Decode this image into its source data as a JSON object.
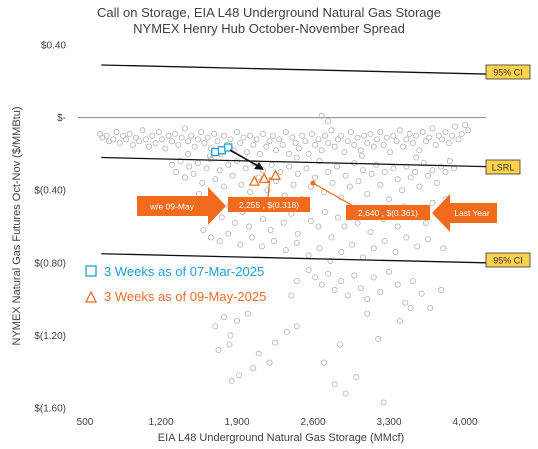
{
  "chart_data": {
    "type": "scatter",
    "title": "Call on Storage, EIA L48 Underground Natural Gas Storage",
    "subtitle": "NYMEX Henry Hub October-November Spread",
    "xlabel": "EIA L48 Underground Natural Gas Storage (MMcf)",
    "ylabel": "NYMEX Natural Gas Futures Oct-Nov ($/MMBtu)",
    "xlim": [
      500,
      4200
    ],
    "ylim": [
      -1.6,
      0.4
    ],
    "x_ticks": [
      500,
      1200,
      1900,
      2600,
      3300,
      4000
    ],
    "x_tick_labels": [
      "500",
      "1,200",
      "1,900",
      "2,600",
      "3,300",
      "4,000"
    ],
    "y_ticks": [
      0.4,
      0.0,
      -0.4,
      -0.8,
      -1.2,
      -1.6
    ],
    "y_tick_labels": [
      "$0.40",
      "$-",
      "$(0.40)",
      "$(0.80)",
      "$(1.20)",
      "$(1.60)"
    ],
    "lines": [
      {
        "label": "95% CI",
        "x": [
          650,
          4200
        ],
        "y": [
          0.29,
          0.24
        ]
      },
      {
        "label": "LSRL",
        "x": [
          650,
          4200
        ],
        "y": [
          -0.22,
          -0.27
        ]
      },
      {
        "label": "95% CI",
        "x": [
          650,
          4200
        ],
        "y": [
          -0.75,
          -0.8
        ]
      }
    ],
    "series": [
      {
        "name": "3 Weeks as of 07-Mar-2025",
        "color": "#1ea0dc",
        "marker": "square",
        "x": [
          1700,
          1760,
          1820
        ],
        "y": [
          -0.19,
          -0.18,
          -0.165
        ]
      },
      {
        "name": "3 Weeks as of 09-May-2025",
        "color": "#e8702a",
        "marker": "triangle",
        "x": [
          2060,
          2150,
          2255
        ],
        "y": [
          -0.35,
          -0.335,
          -0.318
        ]
      }
    ],
    "annotations": [
      {
        "text": "w/e 09-May"
      },
      {
        "text": "2,255 ,  $(0.318)"
      },
      {
        "text": "2,640 ,  $(0.361)"
      },
      {
        "text": "Last Year"
      }
    ],
    "history_points": [
      [
        640,
        -0.09
      ],
      [
        660,
        -0.11
      ],
      [
        700,
        -0.1
      ],
      [
        720,
        -0.13
      ],
      [
        760,
        -0.12
      ],
      [
        790,
        -0.08
      ],
      [
        820,
        -0.14
      ],
      [
        850,
        -0.1
      ],
      [
        880,
        -0.12
      ],
      [
        910,
        -0.09
      ],
      [
        940,
        -0.15
      ],
      [
        970,
        -0.11
      ],
      [
        1000,
        -0.13
      ],
      [
        1030,
        -0.07
      ],
      [
        1060,
        -0.12
      ],
      [
        1090,
        -0.16
      ],
      [
        1120,
        -0.1
      ],
      [
        1150,
        -0.14
      ],
      [
        1180,
        -0.08
      ],
      [
        1210,
        -0.12
      ],
      [
        1240,
        -0.17
      ],
      [
        1270,
        -0.1
      ],
      [
        1300,
        -0.13
      ],
      [
        1330,
        -0.09
      ],
      [
        1360,
        -0.15
      ],
      [
        1390,
        -0.11
      ],
      [
        1420,
        -0.06
      ],
      [
        1450,
        -0.13
      ],
      [
        1480,
        -0.1
      ],
      [
        1510,
        -0.16
      ],
      [
        1540,
        -0.12
      ],
      [
        1570,
        -0.08
      ],
      [
        1600,
        -0.14
      ],
      [
        1630,
        -0.11
      ],
      [
        1660,
        -0.17
      ],
      [
        1690,
        -0.09
      ],
      [
        1720,
        -0.13
      ],
      [
        1750,
        -0.2
      ],
      [
        1780,
        -0.1
      ],
      [
        1810,
        -0.15
      ],
      [
        1840,
        -0.12
      ],
      [
        1870,
        -0.18
      ],
      [
        1900,
        -0.08
      ],
      [
        1930,
        -0.14
      ],
      [
        1960,
        -0.11
      ],
      [
        1990,
        -0.19
      ],
      [
        2020,
        -0.1
      ],
      [
        2050,
        -0.15
      ],
      [
        2080,
        -0.12
      ],
      [
        2110,
        -0.2
      ],
      [
        2140,
        -0.09
      ],
      [
        2170,
        -0.16
      ],
      [
        2200,
        -0.13
      ],
      [
        2230,
        -0.1
      ],
      [
        2260,
        -0.18
      ],
      [
        2290,
        -0.12
      ],
      [
        2320,
        -0.15
      ],
      [
        2350,
        -0.08
      ],
      [
        2380,
        -0.2
      ],
      [
        2410,
        -0.11
      ],
      [
        2440,
        -0.14
      ],
      [
        2470,
        -0.17
      ],
      [
        2500,
        -0.1
      ],
      [
        2530,
        -0.13
      ],
      [
        2560,
        -0.2
      ],
      [
        2590,
        -0.09
      ],
      [
        2620,
        -0.15
      ],
      [
        2650,
        -0.12
      ],
      [
        2680,
        -0.18
      ],
      [
        2710,
        -0.1
      ],
      [
        2740,
        -0.14
      ],
      [
        2770,
        -0.07
      ],
      [
        2800,
        -0.16
      ],
      [
        2830,
        -0.12
      ],
      [
        2860,
        -0.1
      ],
      [
        2890,
        -0.19
      ],
      [
        2920,
        -0.13
      ],
      [
        2950,
        -0.08
      ],
      [
        2980,
        -0.15
      ],
      [
        3010,
        -0.11
      ],
      [
        3040,
        -0.18
      ],
      [
        3070,
        -0.1
      ],
      [
        3100,
        -0.14
      ],
      [
        3130,
        -0.09
      ],
      [
        3160,
        -0.16
      ],
      [
        3190,
        -0.12
      ],
      [
        3220,
        -0.08
      ],
      [
        3250,
        -0.15
      ],
      [
        3280,
        -0.11
      ],
      [
        3310,
        -0.19
      ],
      [
        3340,
        -0.1
      ],
      [
        3370,
        -0.13
      ],
      [
        3400,
        -0.07
      ],
      [
        3430,
        -0.16
      ],
      [
        3460,
        -0.12
      ],
      [
        3490,
        -0.09
      ],
      [
        3520,
        -0.14
      ],
      [
        3550,
        -0.1
      ],
      [
        3580,
        -0.18
      ],
      [
        3610,
        -0.08
      ],
      [
        3640,
        -0.13
      ],
      [
        3670,
        -0.11
      ],
      [
        3700,
        -0.06
      ],
      [
        3730,
        -0.15
      ],
      [
        3760,
        -0.1
      ],
      [
        3790,
        -0.12
      ],
      [
        3820,
        -0.08
      ],
      [
        3850,
        -0.14
      ],
      [
        3880,
        -0.1
      ],
      [
        3910,
        -0.05
      ],
      [
        3940,
        -0.12
      ],
      [
        3970,
        -0.09
      ],
      [
        4000,
        -0.04
      ],
      [
        4030,
        -0.07
      ],
      [
        2680,
        0.01
      ],
      [
        2740,
        -0.02
      ],
      [
        1300,
        -0.26
      ],
      [
        1340,
        -0.3
      ],
      [
        1380,
        -0.24
      ],
      [
        1420,
        -0.33
      ],
      [
        1460,
        -0.27
      ],
      [
        1500,
        -0.31
      ],
      [
        1540,
        -0.25
      ],
      [
        1580,
        -0.36
      ],
      [
        1620,
        -0.28
      ],
      [
        1660,
        -0.23
      ],
      [
        1700,
        -0.34
      ],
      [
        1740,
        -0.29
      ],
      [
        1780,
        -0.38
      ],
      [
        1820,
        -0.26
      ],
      [
        1860,
        -0.32
      ],
      [
        1900,
        -0.24
      ],
      [
        1940,
        -0.37
      ],
      [
        1980,
        -0.28
      ],
      [
        2020,
        -0.41
      ],
      [
        2060,
        -0.25
      ],
      [
        2100,
        -0.33
      ],
      [
        2140,
        -0.29
      ],
      [
        2180,
        -0.4
      ],
      [
        2220,
        -0.26
      ],
      [
        2260,
        -0.35
      ],
      [
        2300,
        -0.3
      ],
      [
        2340,
        -0.43
      ],
      [
        2380,
        -0.27
      ],
      [
        2420,
        -0.37
      ],
      [
        2460,
        -0.31
      ],
      [
        2500,
        -0.45
      ],
      [
        2540,
        -0.28
      ],
      [
        2580,
        -0.38
      ],
      [
        2620,
        -0.33
      ],
      [
        2660,
        -0.24
      ],
      [
        2700,
        -0.41
      ],
      [
        2740,
        -0.3
      ],
      [
        2780,
        -0.36
      ],
      [
        2820,
        -0.27
      ],
      [
        2860,
        -0.44
      ],
      [
        2900,
        -0.32
      ],
      [
        2940,
        -0.38
      ],
      [
        2980,
        -0.25
      ],
      [
        3020,
        -0.35
      ],
      [
        3060,
        -0.29
      ],
      [
        3100,
        -0.42
      ],
      [
        3140,
        -0.31
      ],
      [
        3180,
        -0.26
      ],
      [
        3220,
        -0.37
      ],
      [
        3260,
        -0.3
      ],
      [
        3300,
        -0.45
      ],
      [
        3340,
        -0.28
      ],
      [
        3380,
        -0.34
      ],
      [
        3420,
        -0.4
      ],
      [
        3460,
        -0.27
      ],
      [
        3500,
        -0.33
      ],
      [
        3540,
        -0.3
      ],
      [
        3580,
        -0.38
      ],
      [
        3620,
        -0.25
      ],
      [
        3660,
        -0.32
      ],
      [
        3700,
        -0.29
      ],
      [
        3740,
        -0.36
      ],
      [
        3780,
        -0.27
      ],
      [
        3820,
        -0.3
      ],
      [
        3860,
        -0.24
      ],
      [
        3900,
        -0.28
      ],
      [
        1450,
        -0.2
      ],
      [
        1650,
        -0.21
      ],
      [
        2450,
        -0.22
      ],
      [
        3050,
        -0.21
      ],
      [
        3550,
        -0.22
      ],
      [
        1550,
        -0.42
      ],
      [
        1620,
        -0.5
      ],
      [
        1700,
        -0.46
      ],
      [
        1760,
        -0.55
      ],
      [
        1830,
        -0.49
      ],
      [
        1880,
        -0.58
      ],
      [
        1950,
        -0.52
      ],
      [
        2010,
        -0.6
      ],
      [
        2080,
        -0.48
      ],
      [
        2140,
        -0.56
      ],
      [
        2210,
        -0.62
      ],
      [
        2270,
        -0.5
      ],
      [
        2330,
        -0.58
      ],
      [
        2400,
        -0.53
      ],
      [
        2460,
        -0.64
      ],
      [
        2520,
        -0.49
      ],
      [
        2580,
        -0.57
      ],
      [
        2650,
        -0.6
      ],
      [
        2710,
        -0.52
      ],
      [
        2770,
        -0.66
      ],
      [
        2830,
        -0.55
      ],
      [
        2890,
        -0.6
      ],
      [
        2950,
        -0.5
      ],
      [
        3010,
        -0.58
      ],
      [
        3070,
        -0.54
      ],
      [
        3130,
        -0.63
      ],
      [
        3190,
        -0.5
      ],
      [
        3250,
        -0.56
      ],
      [
        3320,
        -0.52
      ],
      [
        3380,
        -0.6
      ],
      [
        3440,
        -0.49
      ],
      [
        3510,
        -0.55
      ],
      [
        3570,
        -0.5
      ],
      [
        3640,
        -0.58
      ],
      [
        3700,
        -0.47
      ],
      [
        3760,
        -0.53
      ],
      [
        3820,
        -0.45
      ],
      [
        3880,
        -0.5
      ],
      [
        1590,
        -0.62
      ],
      [
        1660,
        -0.66
      ],
      [
        1740,
        -0.68
      ],
      [
        1820,
        -0.64
      ],
      [
        1930,
        -0.7
      ],
      [
        2040,
        -0.66
      ],
      [
        2130,
        -0.71
      ],
      [
        2240,
        -0.68
      ],
      [
        2350,
        -0.73
      ],
      [
        2450,
        -0.69
      ],
      [
        2560,
        -0.76
      ],
      [
        2660,
        -0.72
      ],
      [
        2760,
        -0.79
      ],
      [
        2860,
        -0.74
      ],
      [
        2960,
        -0.7
      ],
      [
        3060,
        -0.77
      ],
      [
        3160,
        -0.72
      ],
      [
        3260,
        -0.68
      ],
      [
        3360,
        -0.74
      ],
      [
        3460,
        -0.66
      ],
      [
        3560,
        -0.71
      ],
      [
        3660,
        -0.67
      ],
      [
        3800,
        -0.72
      ],
      [
        2560,
        -0.84
      ],
      [
        2620,
        -0.88
      ],
      [
        2680,
        -0.92
      ],
      [
        2740,
        -0.86
      ],
      [
        2800,
        -0.95
      ],
      [
        2860,
        -0.9
      ],
      [
        2920,
        -0.98
      ],
      [
        2980,
        -0.87
      ],
      [
        3040,
        -0.94
      ],
      [
        3100,
        -1.0
      ],
      [
        3160,
        -0.88
      ],
      [
        3220,
        -0.96
      ],
      [
        3300,
        -0.85
      ],
      [
        3380,
        -0.92
      ],
      [
        3450,
        -1.02
      ],
      [
        3520,
        -0.9
      ],
      [
        3600,
        -0.97
      ],
      [
        3680,
        -1.05
      ],
      [
        3780,
        -0.95
      ],
      [
        2450,
        -0.9
      ],
      [
        2400,
        -0.98
      ],
      [
        1700,
        -1.15
      ],
      [
        1780,
        -1.1
      ],
      [
        1840,
        -1.2
      ],
      [
        1900,
        -1.12
      ],
      [
        2000,
        -1.08
      ],
      [
        1730,
        -1.28
      ],
      [
        1830,
        -1.25
      ],
      [
        2100,
        -1.3
      ],
      [
        2250,
        -1.24
      ],
      [
        2360,
        -1.18
      ],
      [
        1850,
        -1.45
      ],
      [
        1920,
        -1.42
      ],
      [
        2050,
        -1.38
      ],
      [
        2200,
        -1.35
      ],
      [
        2450,
        -1.15
      ],
      [
        2700,
        -1.35
      ],
      [
        2800,
        -1.47
      ],
      [
        2900,
        -1.52
      ],
      [
        3000,
        -1.43
      ],
      [
        3200,
        -1.22
      ],
      [
        3250,
        -1.57
      ],
      [
        3400,
        -1.12
      ],
      [
        3500,
        -1.05
      ],
      [
        2850,
        -1.25
      ],
      [
        3100,
        -1.08
      ]
    ]
  },
  "legend": {
    "items": [
      {
        "label": "3 Weeks as of 07-Mar-2025",
        "color": "#1ea0dc"
      },
      {
        "label": "3 Weeks as of 09-May-2025",
        "color": "#e8702a"
      }
    ]
  },
  "colors": {
    "box_fill": "#ffd24d",
    "arrow_orange": "#f26b1d",
    "history_marker": "#b3b3b3"
  }
}
